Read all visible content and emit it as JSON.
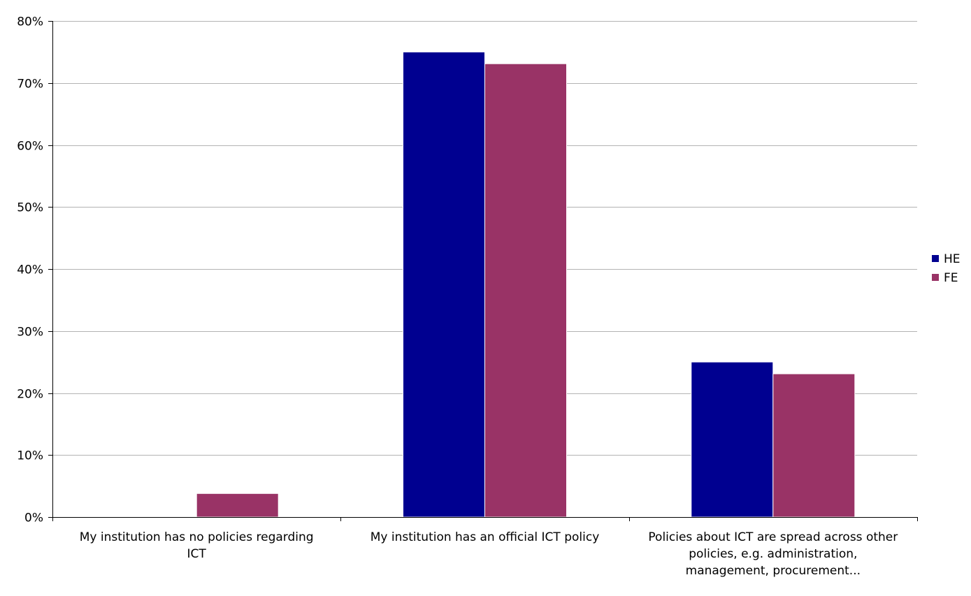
{
  "chart_data": {
    "type": "bar",
    "title": "",
    "xlabel": "",
    "ylabel": "",
    "categories": [
      [
        "My institution has no policies regarding",
        "ICT"
      ],
      [
        "My institution has an official ICT policy"
      ],
      [
        "Policies about ICT are spread across other",
        "policies, e.g. administration,",
        "management, procurement..."
      ]
    ],
    "series": [
      {
        "name": "HE",
        "color": "#000090",
        "values": [
          0,
          75,
          25
        ]
      },
      {
        "name": "FE",
        "color": "#993366",
        "values": [
          3.8,
          73.1,
          23.1
        ]
      }
    ],
    "ylim": [
      0,
      80
    ],
    "yticks": [
      0,
      10,
      20,
      30,
      40,
      50,
      60,
      70,
      80
    ],
    "ytick_labels": [
      "0%",
      "10%",
      "20%",
      "30%",
      "40%",
      "50%",
      "60%",
      "70%",
      "80%"
    ],
    "grid": true,
    "legend_position": "right"
  }
}
